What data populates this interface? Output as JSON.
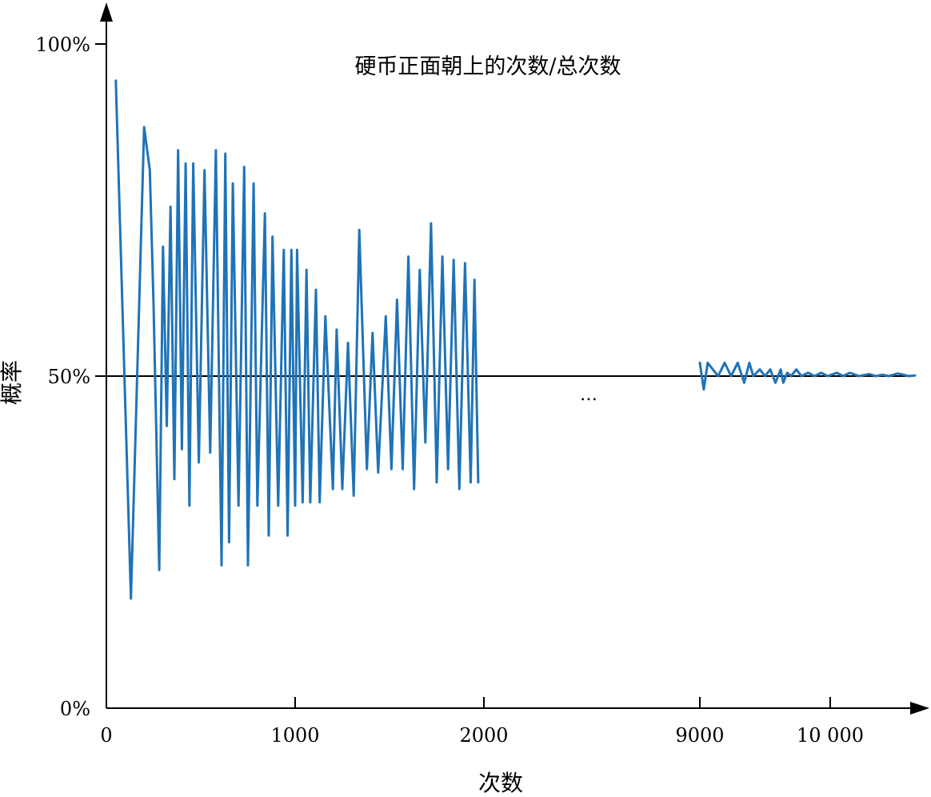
{
  "chart_data": {
    "type": "line",
    "title": "硬币正面朝上的次数/总次数",
    "xlabel": "次数",
    "ylabel": "概率",
    "ylim": [
      0,
      1
    ],
    "ellipsis": "…",
    "x_ticks": [
      "0",
      "1000",
      "2000",
      "9000",
      "10 000"
    ],
    "x_tick_values": [
      0,
      1000,
      2000,
      9000,
      10000
    ],
    "y_ticks": [
      "0%",
      "50%",
      "100%"
    ],
    "y_tick_values": [
      0,
      0.5,
      1
    ],
    "reference_line": {
      "y": 0.5
    },
    "segments": [
      {
        "x": [
          50,
          130,
          200,
          230,
          250,
          280,
          300,
          320,
          340,
          360,
          380,
          400,
          420,
          440,
          460,
          490,
          520,
          550,
          580,
          610,
          630,
          650,
          670,
          700,
          730,
          750,
          780,
          800,
          840,
          860,
          880,
          910,
          940,
          960,
          980,
          1000,
          1010,
          1040,
          1060,
          1080,
          1110,
          1130,
          1160,
          1200,
          1220,
          1250,
          1280,
          1310,
          1340,
          1380,
          1410,
          1440,
          1480,
          1510,
          1540,
          1570,
          1600,
          1630,
          1660,
          1690,
          1720,
          1750,
          1780,
          1810,
          1840,
          1870,
          1900,
          1930,
          1950,
          1970
        ],
        "y": [
          0.945,
          0.165,
          0.875,
          0.81,
          0.607,
          0.208,
          0.695,
          0.425,
          0.755,
          0.345,
          0.84,
          0.39,
          0.82,
          0.305,
          0.82,
          0.37,
          0.81,
          0.385,
          0.84,
          0.215,
          0.835,
          0.25,
          0.79,
          0.305,
          0.815,
          0.215,
          0.79,
          0.305,
          0.745,
          0.26,
          0.71,
          0.305,
          0.69,
          0.26,
          0.69,
          0.305,
          0.69,
          0.31,
          0.66,
          0.31,
          0.63,
          0.31,
          0.59,
          0.33,
          0.57,
          0.33,
          0.55,
          0.32,
          0.72,
          0.36,
          0.565,
          0.355,
          0.59,
          0.36,
          0.615,
          0.36,
          0.68,
          0.33,
          0.66,
          0.4,
          0.73,
          0.34,
          0.68,
          0.36,
          0.675,
          0.33,
          0.67,
          0.34,
          0.645,
          0.34
        ]
      },
      {
        "x": [
          9000,
          9030,
          9060,
          9100,
          9140,
          9190,
          9240,
          9290,
          9340,
          9380,
          9410,
          9460,
          9500,
          9540,
          9580,
          9620,
          9640,
          9670,
          9700,
          9740,
          9780,
          9830,
          9880,
          9930,
          9980,
          10050,
          10100,
          10150,
          10220,
          10300,
          10350,
          10400,
          10450,
          10520,
          10600,
          10650
        ],
        "y": [
          0.52,
          0.48,
          0.52,
          0.51,
          0.5,
          0.52,
          0.5,
          0.52,
          0.49,
          0.52,
          0.5,
          0.51,
          0.5,
          0.51,
          0.49,
          0.51,
          0.49,
          0.505,
          0.5,
          0.51,
          0.5,
          0.505,
          0.5,
          0.505,
          0.5,
          0.505,
          0.5,
          0.505,
          0.5,
          0.503,
          0.5,
          0.502,
          0.5,
          0.504,
          0.5,
          0.501
        ]
      }
    ]
  }
}
